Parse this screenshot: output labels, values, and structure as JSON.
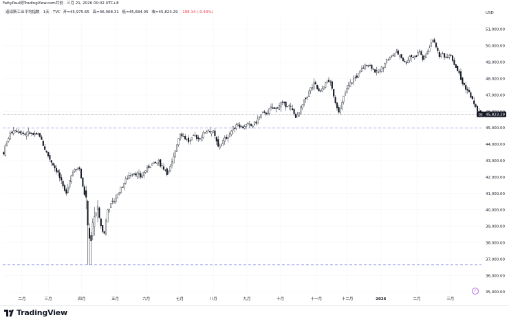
{
  "header": {
    "attribution": "FattyPaul测TradingView.com共创 · 三月 21, 2026 00:02 UTC+8"
  },
  "legend": {
    "symbol": "道琼斯工业平均指数 · 1天 · TVC",
    "open_label": "开",
    "open": "=45,975.65",
    "high_label": "高",
    "high": "=46,068.31",
    "low_label": "低",
    "low": "=45,684.05",
    "close_label": "收",
    "close": "=45,823.29",
    "change": "-198.14 (-0.43%)"
  },
  "footer": {
    "brand": "TradingView"
  },
  "colors": {
    "candle": "#131722",
    "hline": "#7b7fe6",
    "price_line": "#787b86",
    "grid": "#f0f3fa",
    "axis_text": "#131722",
    "last_price_bg": "#131722",
    "last_price_text": "#ffffff",
    "brand_icon": "#b067e6"
  },
  "icons": {
    "tv_logo": "tradingview-logo-icon",
    "watermark": "lightning-icon"
  },
  "chart_data": {
    "type": "candlestick",
    "currency": "USD",
    "y_ticks": [
      "51,000.00",
      "50,000.00",
      "49,000.00",
      "48,000.00",
      "47,000.00",
      "46,000.00",
      "45,000.00",
      "44,000.00",
      "43,000.00",
      "42,000.00",
      "41,000.00",
      "40,000.00",
      "39,000.00",
      "38,000.00",
      "37,000.00",
      "36,000.00",
      "35,000.00"
    ],
    "y_tick_values": [
      51000,
      50000,
      49000,
      48000,
      47000,
      46000,
      45000,
      44000,
      43000,
      42000,
      41000,
      40000,
      39000,
      38000,
      37000,
      36000,
      35000
    ],
    "ylim": [
      34800,
      51700
    ],
    "x_ticks": [
      "二月",
      "三月",
      "四月",
      "五月",
      "六月",
      "七月",
      "八月",
      "九月",
      "十月",
      "十一月",
      "十二月",
      "2026",
      "二月",
      "三月"
    ],
    "x_tick_positions": [
      0.04,
      0.095,
      0.165,
      0.235,
      0.3,
      0.37,
      0.44,
      0.51,
      0.58,
      0.655,
      0.72,
      0.79,
      0.865,
      0.935
    ],
    "horizontal_lines": [
      45000,
      36650
    ],
    "last_price": {
      "value": 45823.29,
      "label": "45,823.29",
      "tag": "DJI"
    },
    "ohlc_last": {
      "open": 45975.65,
      "high": 46068.31,
      "low": 45684.05,
      "close": 45823.29
    },
    "path": [
      [
        0.0,
        43500
      ],
      [
        0.01,
        44400
      ],
      [
        0.02,
        44900
      ],
      [
        0.035,
        44800
      ],
      [
        0.045,
        44600
      ],
      [
        0.055,
        44700
      ],
      [
        0.065,
        44500
      ],
      [
        0.075,
        44600
      ],
      [
        0.085,
        43800
      ],
      [
        0.095,
        43200
      ],
      [
        0.105,
        42700
      ],
      [
        0.115,
        42200
      ],
      [
        0.125,
        41300
      ],
      [
        0.13,
        41000
      ],
      [
        0.14,
        42000
      ],
      [
        0.15,
        42600
      ],
      [
        0.16,
        42500
      ],
      [
        0.165,
        41500
      ],
      [
        0.172,
        40700
      ],
      [
        0.178,
        38800
      ],
      [
        0.183,
        37800
      ],
      [
        0.188,
        39500
      ],
      [
        0.195,
        40000
      ],
      [
        0.202,
        39300
      ],
      [
        0.21,
        38400
      ],
      [
        0.218,
        40000
      ],
      [
        0.228,
        40400
      ],
      [
        0.238,
        40900
      ],
      [
        0.25,
        41500
      ],
      [
        0.262,
        42100
      ],
      [
        0.275,
        42300
      ],
      [
        0.288,
        42000
      ],
      [
        0.3,
        42500
      ],
      [
        0.312,
        42800
      ],
      [
        0.325,
        42900
      ],
      [
        0.335,
        42600
      ],
      [
        0.345,
        42200
      ],
      [
        0.355,
        43000
      ],
      [
        0.362,
        43900
      ],
      [
        0.37,
        44700
      ],
      [
        0.38,
        44400
      ],
      [
        0.39,
        44100
      ],
      [
        0.4,
        44500
      ],
      [
        0.41,
        44300
      ],
      [
        0.42,
        44700
      ],
      [
        0.43,
        44900
      ],
      [
        0.44,
        44700
      ],
      [
        0.45,
        43800
      ],
      [
        0.46,
        44200
      ],
      [
        0.47,
        44500
      ],
      [
        0.48,
        44900
      ],
      [
        0.49,
        45300
      ],
      [
        0.5,
        45000
      ],
      [
        0.51,
        45200
      ],
      [
        0.52,
        45100
      ],
      [
        0.53,
        45400
      ],
      [
        0.54,
        45800
      ],
      [
        0.55,
        45900
      ],
      [
        0.56,
        46200
      ],
      [
        0.57,
        46100
      ],
      [
        0.58,
        46500
      ],
      [
        0.59,
        46400
      ],
      [
        0.6,
        46300
      ],
      [
        0.608,
        45900
      ],
      [
        0.615,
        45600
      ],
      [
        0.622,
        46100
      ],
      [
        0.632,
        46700
      ],
      [
        0.642,
        47300
      ],
      [
        0.652,
        47700
      ],
      [
        0.662,
        47100
      ],
      [
        0.672,
        47600
      ],
      [
        0.682,
        47900
      ],
      [
        0.69,
        47200
      ],
      [
        0.697,
        46400
      ],
      [
        0.705,
        46000
      ],
      [
        0.712,
        46800
      ],
      [
        0.722,
        47500
      ],
      [
        0.732,
        47900
      ],
      [
        0.742,
        48200
      ],
      [
        0.752,
        48600
      ],
      [
        0.762,
        48900
      ],
      [
        0.772,
        48700
      ],
      [
        0.782,
        48300
      ],
      [
        0.792,
        48600
      ],
      [
        0.802,
        49100
      ],
      [
        0.812,
        49300
      ],
      [
        0.822,
        49600
      ],
      [
        0.832,
        49400
      ],
      [
        0.842,
        48900
      ],
      [
        0.852,
        49400
      ],
      [
        0.862,
        49300
      ],
      [
        0.872,
        49700
      ],
      [
        0.88,
        49100
      ],
      [
        0.888,
        49600
      ],
      [
        0.896,
        50200
      ],
      [
        0.904,
        50300
      ],
      [
        0.912,
        49400
      ],
      [
        0.92,
        49500
      ],
      [
        0.928,
        49300
      ],
      [
        0.936,
        49600
      ],
      [
        0.944,
        48900
      ],
      [
        0.952,
        48500
      ],
      [
        0.96,
        47800
      ],
      [
        0.968,
        47500
      ],
      [
        0.976,
        47100
      ],
      [
        0.984,
        46600
      ],
      [
        0.992,
        46100
      ],
      [
        1.0,
        45823
      ]
    ]
  }
}
